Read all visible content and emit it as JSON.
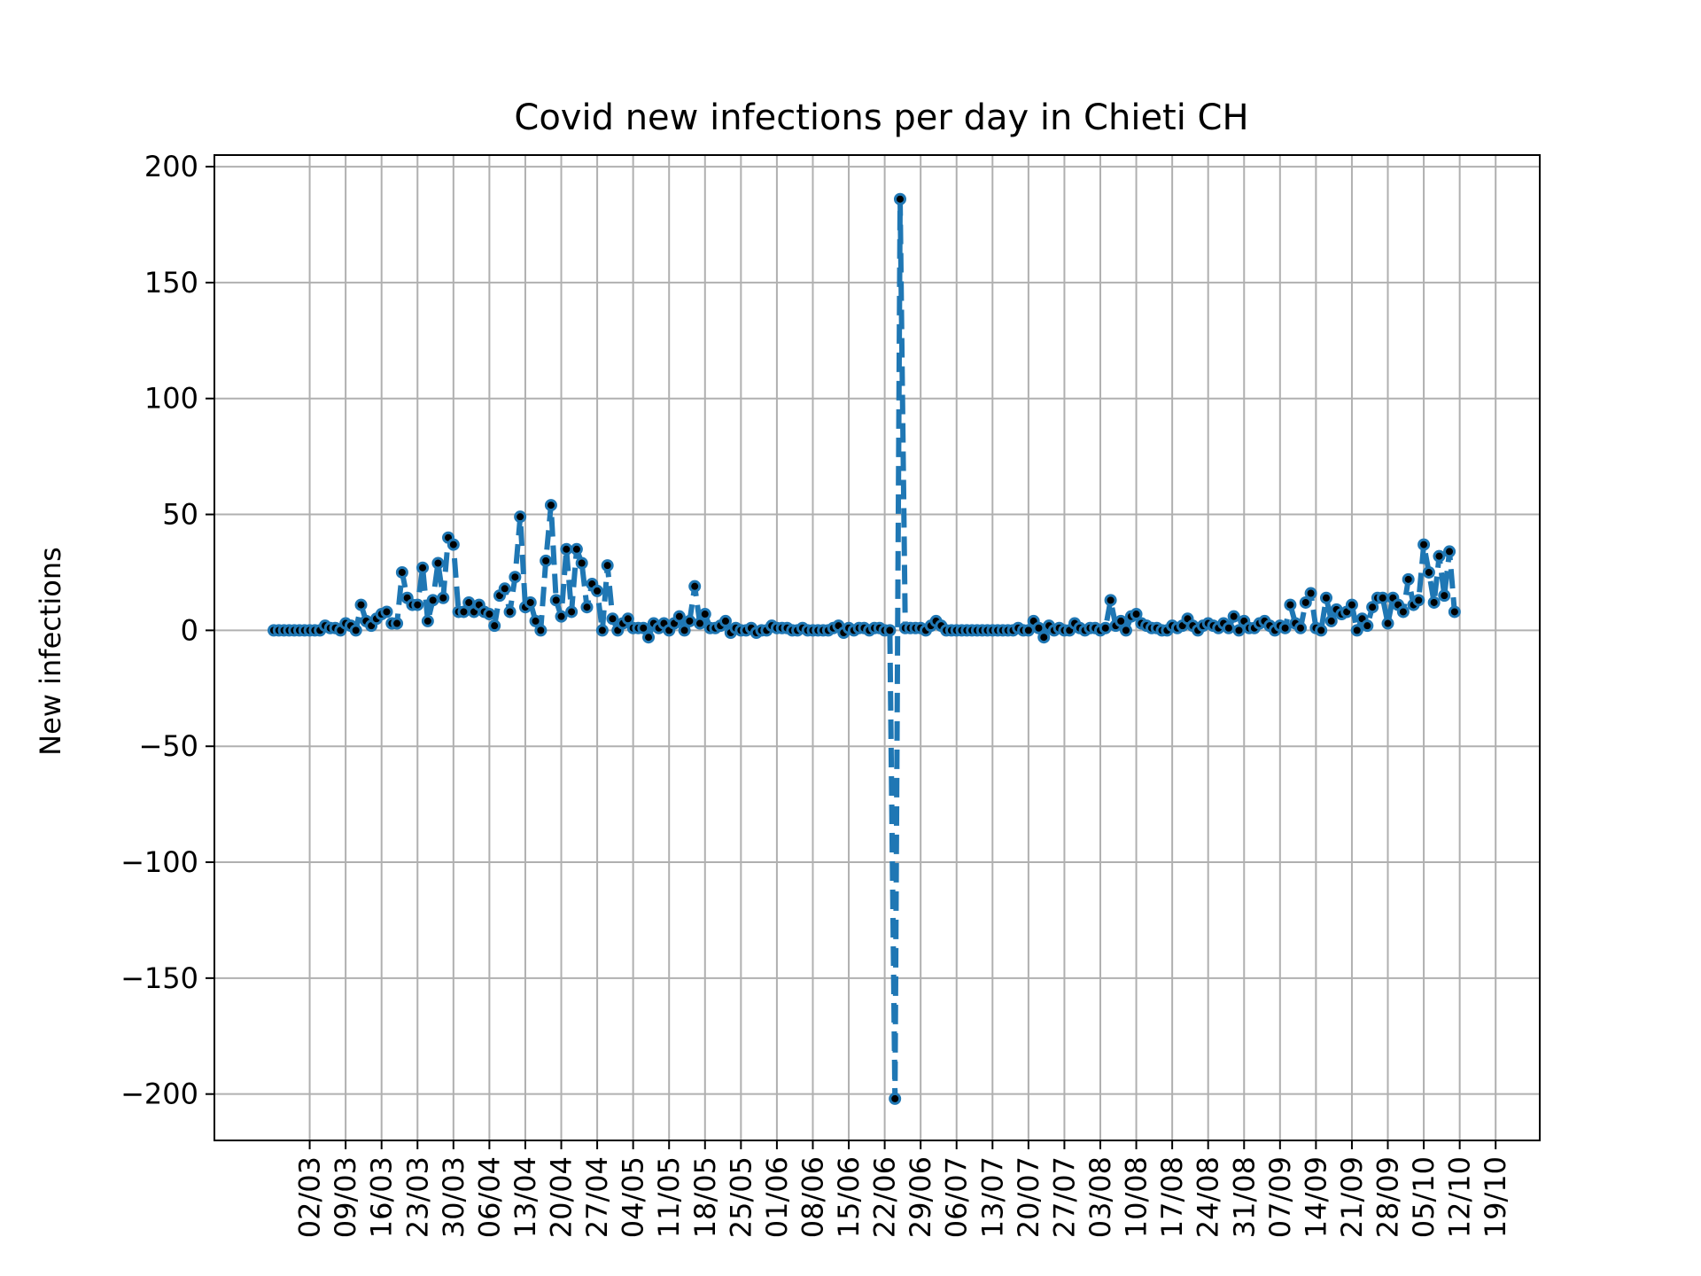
{
  "chart_data": {
    "type": "line",
    "title": "Covid new infections per day in Chieti CH",
    "xlabel": "",
    "ylabel": "New infections",
    "x_tick_labels": [
      "02/03",
      "09/03",
      "16/03",
      "23/03",
      "30/03",
      "06/04",
      "13/04",
      "20/04",
      "27/04",
      "04/05",
      "11/05",
      "18/05",
      "25/05",
      "01/06",
      "08/06",
      "15/06",
      "22/06",
      "29/06",
      "06/07",
      "13/07",
      "20/07",
      "27/07",
      "03/08",
      "10/08",
      "17/08",
      "24/08",
      "31/08",
      "07/09",
      "14/09",
      "21/09",
      "28/09",
      "05/10",
      "12/10",
      "19/10"
    ],
    "y_ticks": [
      -200,
      -150,
      -100,
      -50,
      0,
      50,
      100,
      150,
      200
    ],
    "ylim": [
      -220,
      205
    ],
    "grid": true,
    "line_style": "dashed",
    "marker": "dot",
    "colors": {
      "line": "#1f77b4",
      "marker_face": "#000000",
      "grid": "#b0b0b0"
    },
    "series": [
      {
        "x_start": "24/02",
        "values": [
          0,
          0,
          0,
          0,
          0,
          0,
          0,
          0,
          0,
          0,
          2,
          1,
          1,
          0,
          3,
          2,
          0,
          11,
          4,
          2,
          5,
          7,
          8,
          3,
          3,
          25,
          14,
          11,
          11,
          27,
          4,
          13,
          29,
          14,
          40,
          37,
          8,
          8,
          12,
          8,
          11,
          8,
          7,
          2,
          15,
          18,
          8,
          23,
          49,
          10,
          12,
          4,
          0,
          30,
          54,
          13,
          6,
          35,
          8,
          35,
          29,
          10,
          20,
          17,
          0,
          28,
          5,
          0,
          3,
          5,
          1,
          1,
          1,
          -3,
          3,
          1,
          3,
          0,
          3,
          6,
          0,
          4,
          19,
          3,
          7,
          1,
          1,
          2,
          4,
          -1,
          1,
          0,
          0,
          1,
          -1,
          0,
          0,
          2,
          1,
          1,
          1,
          0,
          0,
          1,
          0,
          0,
          0,
          0,
          0,
          1,
          2,
          -1,
          1,
          0,
          1,
          1,
          0,
          1,
          1,
          0,
          0,
          -202,
          186,
          1,
          1,
          1,
          1,
          0,
          2,
          4,
          2,
          0,
          0,
          0,
          0,
          0,
          0,
          0,
          0,
          0,
          0,
          0,
          0,
          0,
          0,
          1,
          0,
          0,
          4,
          1,
          -3,
          2,
          0,
          1,
          0,
          0,
          3,
          1,
          0,
          1,
          1,
          0,
          1,
          13,
          2,
          4,
          0,
          6,
          7,
          3,
          2,
          1,
          1,
          0,
          0,
          2,
          1,
          2,
          5,
          2,
          0,
          2,
          3,
          2,
          1,
          3,
          1,
          6,
          0,
          4,
          1,
          1,
          3,
          4,
          2,
          0,
          2,
          1,
          11,
          3,
          1,
          12,
          16,
          1,
          0,
          14,
          4,
          9,
          7,
          8,
          11,
          0,
          5,
          2,
          10,
          14,
          14,
          3,
          14,
          11,
          8,
          22,
          11,
          13,
          37,
          25,
          12,
          32,
          15,
          34,
          8
        ]
      }
    ]
  }
}
